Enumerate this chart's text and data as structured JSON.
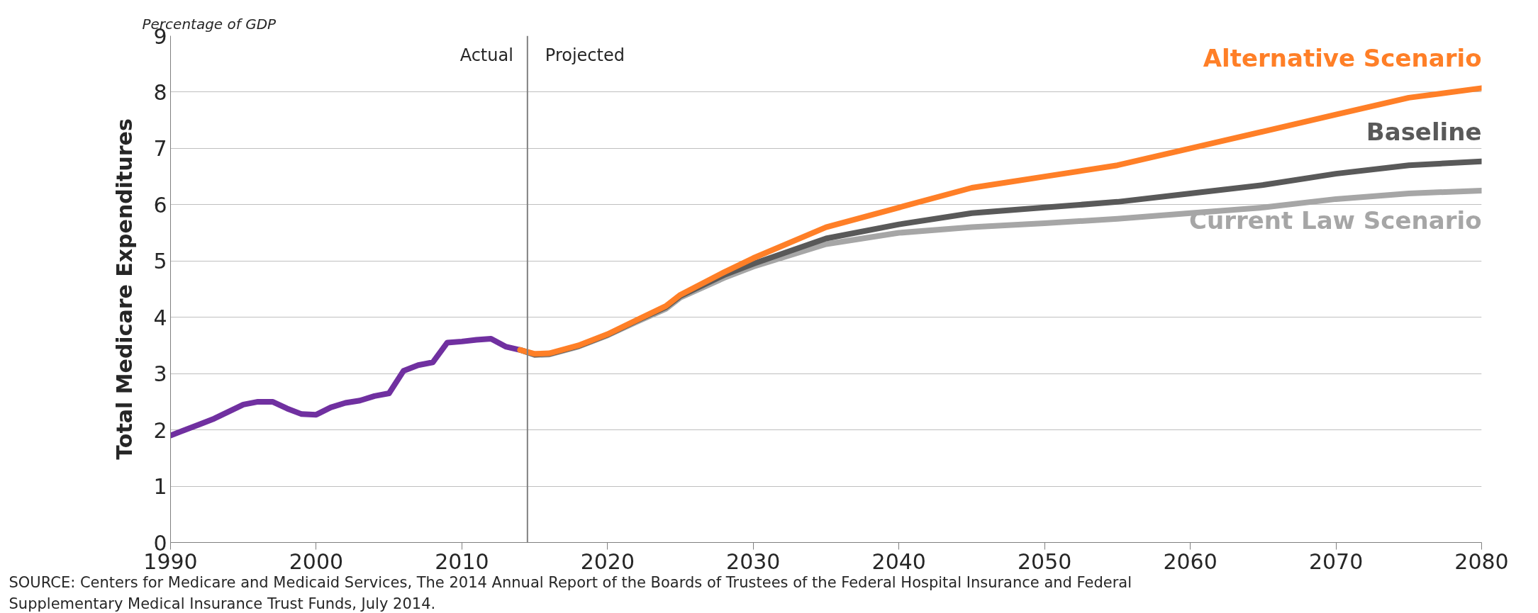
{
  "chart_data": {
    "type": "line",
    "subtitle": "Percentage of GDP",
    "ylabel": "Total Medicare Expenditures",
    "xlim": [
      1990,
      2080
    ],
    "xticks": [
      1990,
      2000,
      2010,
      2020,
      2030,
      2040,
      2050,
      2060,
      2070,
      2080
    ],
    "ylim": [
      0,
      9
    ],
    "yticks": [
      0,
      1,
      2,
      3,
      4,
      5,
      6,
      7,
      8,
      9
    ],
    "grid": "y",
    "marker": "none",
    "line_style": "solid",
    "series": [
      {
        "color": "#7030a0",
        "x": [
          1990,
          1992,
          1993,
          1995,
          1996,
          1997,
          1998,
          1999,
          2000,
          2001,
          2002,
          2003,
          2004,
          2005,
          2006,
          2007,
          2008,
          2009,
          2010,
          2011,
          2012,
          2013,
          2014
        ],
        "values": [
          1.9,
          2.1,
          2.2,
          2.45,
          2.5,
          2.5,
          2.38,
          2.28,
          2.27,
          2.4,
          2.48,
          2.52,
          2.6,
          2.65,
          3.05,
          3.15,
          3.2,
          3.55,
          3.57,
          3.6,
          3.62,
          3.48,
          3.42
        ]
      },
      {
        "name": "Current Law Scenario",
        "color": "#a6a6a6",
        "x": [
          2014,
          2015,
          2016,
          2018,
          2020,
          2022,
          2024,
          2025,
          2028,
          2030,
          2035,
          2040,
          2045,
          2050,
          2055,
          2060,
          2065,
          2070,
          2075,
          2080
        ],
        "values": [
          3.42,
          3.33,
          3.34,
          3.48,
          3.68,
          3.92,
          4.15,
          4.35,
          4.7,
          4.9,
          5.3,
          5.5,
          5.6,
          5.67,
          5.75,
          5.85,
          5.95,
          6.1,
          6.2,
          6.25
        ]
      },
      {
        "name": "Baseline",
        "color": "#595959",
        "x": [
          2014,
          2015,
          2016,
          2018,
          2020,
          2022,
          2024,
          2025,
          2028,
          2030,
          2035,
          2040,
          2045,
          2050,
          2055,
          2060,
          2065,
          2070,
          2075,
          2080
        ],
        "values": [
          3.42,
          3.34,
          3.35,
          3.49,
          3.69,
          3.94,
          4.18,
          4.38,
          4.75,
          4.95,
          5.4,
          5.65,
          5.85,
          5.95,
          6.05,
          6.2,
          6.35,
          6.55,
          6.7,
          6.77
        ]
      },
      {
        "name": "Alternative Scenario",
        "color": "#ff7f27",
        "x": [
          2014,
          2015,
          2016,
          2018,
          2020,
          2022,
          2024,
          2025,
          2028,
          2030,
          2035,
          2040,
          2045,
          2050,
          2055,
          2060,
          2065,
          2070,
          2075,
          2080
        ],
        "values": [
          3.42,
          3.35,
          3.36,
          3.5,
          3.7,
          3.95,
          4.2,
          4.4,
          4.8,
          5.05,
          5.6,
          5.95,
          6.3,
          6.5,
          6.7,
          7.0,
          7.3,
          7.6,
          7.9,
          8.07
        ]
      }
    ],
    "ref_lines": [
      {
        "axis": "x",
        "value": 2014.5,
        "color": "#808080"
      }
    ],
    "annotations": [
      {
        "text": "Actual",
        "x": 2014.5,
        "y": 8.65
      },
      {
        "text": "Projected",
        "x": 2014.5,
        "y": 8.65
      },
      "SOURCE:  Centers for Medicare and Medicaid Services, The 2014 Annual Report of the Boards of Trustees of the Federal Hospital Insurance and Federal Supplementary Medical Insurance Trust Funds, July 2014."
    ]
  }
}
